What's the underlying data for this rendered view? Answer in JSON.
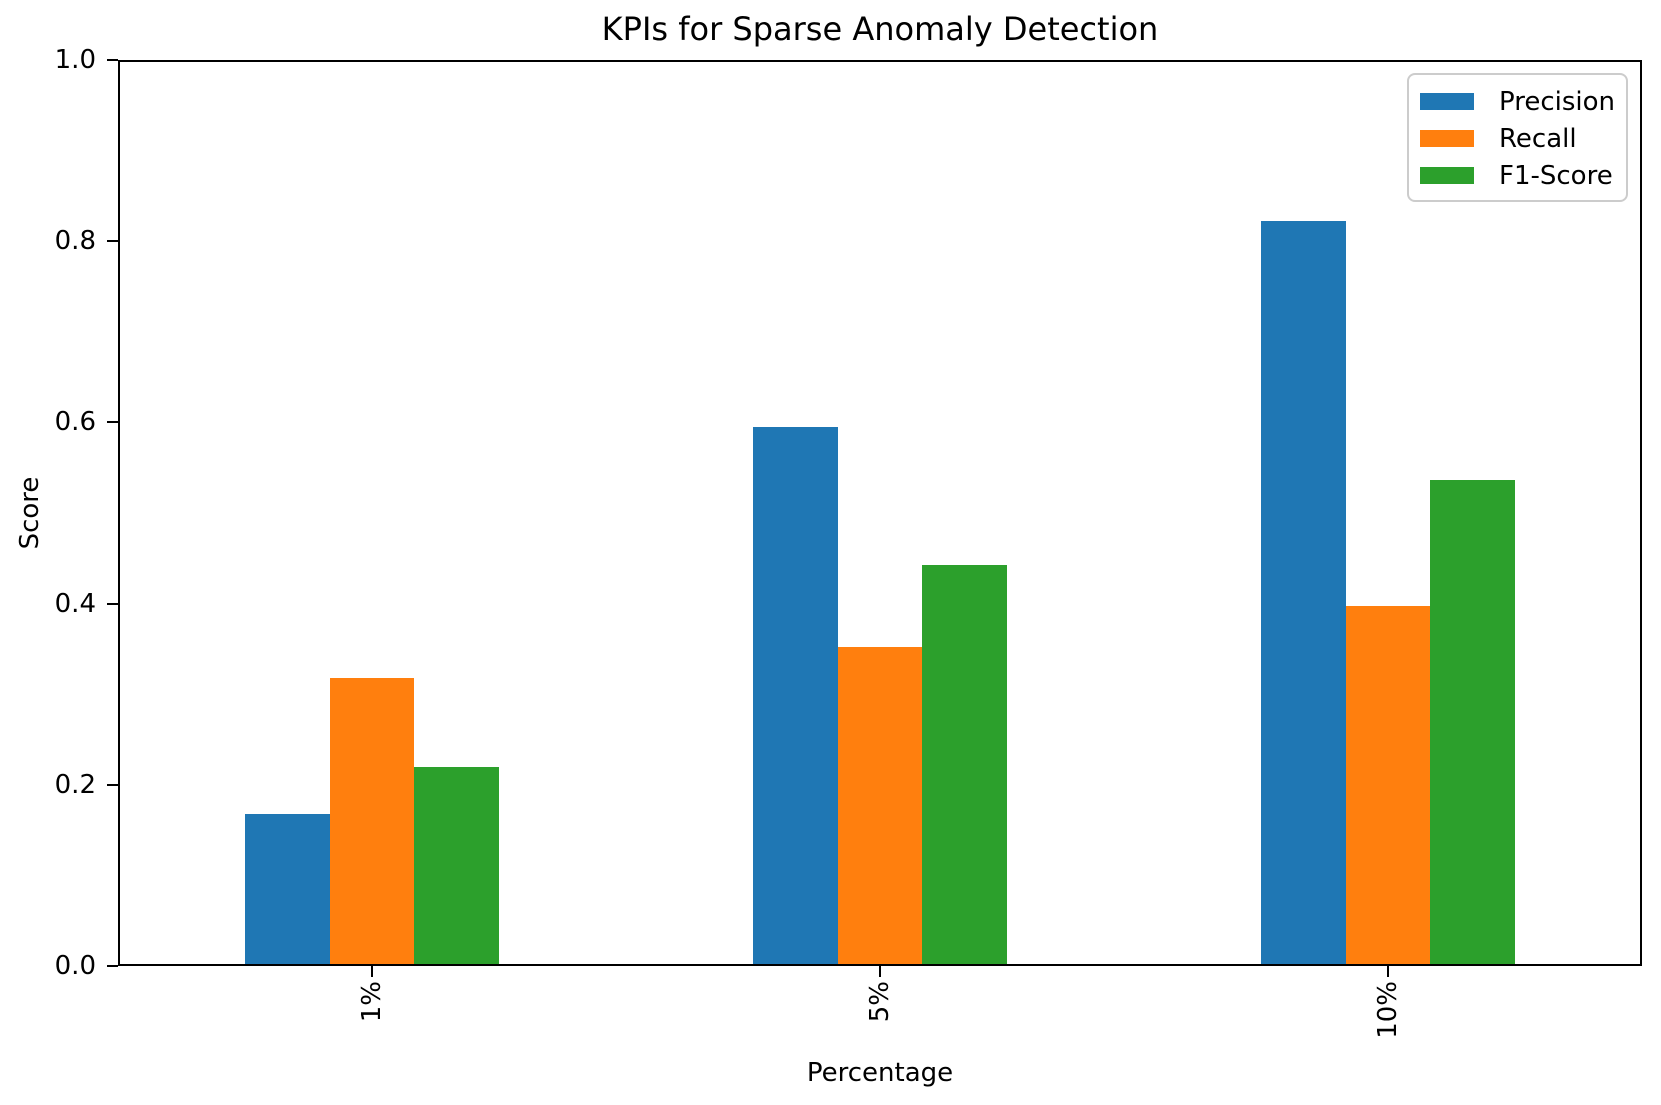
{
  "chart_data": {
    "type": "bar",
    "title": "KPIs for Sparse Anomaly Detection",
    "xlabel": "Percentage",
    "ylabel": "Score",
    "categories": [
      "1%",
      "5%",
      "10%"
    ],
    "series": [
      {
        "name": "Precision",
        "color": "#1f77b4",
        "values": [
          0.166,
          0.593,
          0.82
        ]
      },
      {
        "name": "Recall",
        "color": "#ff7f0e",
        "values": [
          0.316,
          0.35,
          0.395
        ]
      },
      {
        "name": "F1-Score",
        "color": "#2ca02c",
        "values": [
          0.217,
          0.44,
          0.534
        ]
      }
    ],
    "ylim": [
      0.0,
      1.0
    ],
    "yticks": [
      {
        "value": 0.0,
        "label": "0.0"
      },
      {
        "value": 0.2,
        "label": "0.2"
      },
      {
        "value": 0.4,
        "label": "0.4"
      },
      {
        "value": 0.6,
        "label": "0.6"
      },
      {
        "value": 0.8,
        "label": "0.8"
      },
      {
        "value": 1.0,
        "label": "1.0"
      }
    ],
    "grid": false,
    "legend_position": "upper right",
    "x_tick_rotation": 90,
    "bar_group_fraction": 0.5
  }
}
